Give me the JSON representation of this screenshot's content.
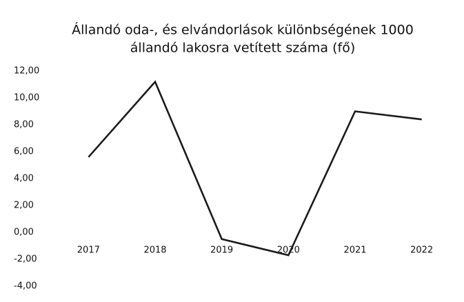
{
  "chart_data": {
    "type": "line",
    "title": [
      "Állandó oda-, és elvándorlások különbségének 1000",
      "állandó lakosra vetített száma (fő)"
    ],
    "categories": [
      "2017",
      "2018",
      "2019",
      "2020",
      "2021",
      "2022"
    ],
    "values": [
      5.6,
      11.2,
      -0.5,
      -1.7,
      9.0,
      8.4
    ],
    "color": "#1a1a1a",
    "ylim": [
      -4,
      12
    ],
    "yticks": [
      {
        "value": -4,
        "label": "-4,00"
      },
      {
        "value": -2,
        "label": "-2,00"
      },
      {
        "value": 0,
        "label": "0,00"
      },
      {
        "value": 2,
        "label": "2,00"
      },
      {
        "value": 4,
        "label": "4,00"
      },
      {
        "value": 6,
        "label": "6,00"
      },
      {
        "value": 8,
        "label": "8,00"
      },
      {
        "value": 10,
        "label": "10,00"
      },
      {
        "value": 12,
        "label": "12,00"
      }
    ],
    "grid": false
  }
}
